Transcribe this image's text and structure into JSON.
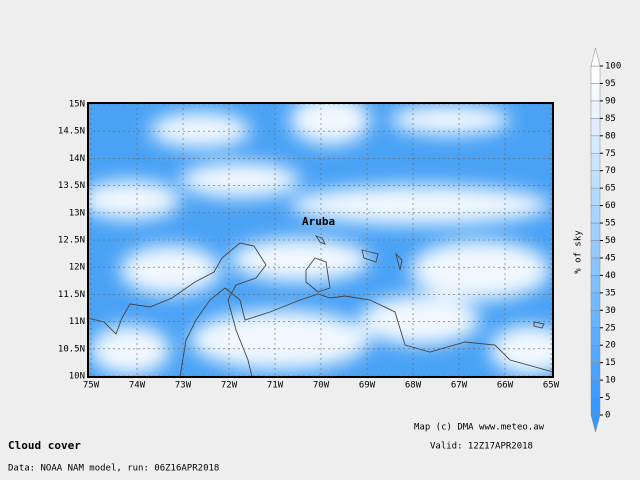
{
  "map": {
    "title": "Cloud cover",
    "valid": "Valid: 12Z17APR2018",
    "source": "Data: NOAA NAM model, run: 06Z16APR2018",
    "credit": "Map (c) DMA www.meteo.aw",
    "place_label": "Aruba",
    "lon_labels": [
      "75W",
      "74W",
      "73W",
      "72W",
      "71W",
      "70W",
      "69W",
      "68W",
      "67W",
      "66W",
      "65W"
    ],
    "lat_labels": [
      "15N",
      "14.5N",
      "14N",
      "13.5N",
      "13N",
      "12.5N",
      "12N",
      "11.5N",
      "11N",
      "10.5N",
      "10N"
    ]
  },
  "colorbar": {
    "label": "% of sky",
    "ticks": [
      0,
      5,
      10,
      15,
      20,
      25,
      30,
      35,
      40,
      45,
      50,
      55,
      60,
      65,
      70,
      75,
      80,
      85,
      90,
      95,
      100
    ]
  }
}
